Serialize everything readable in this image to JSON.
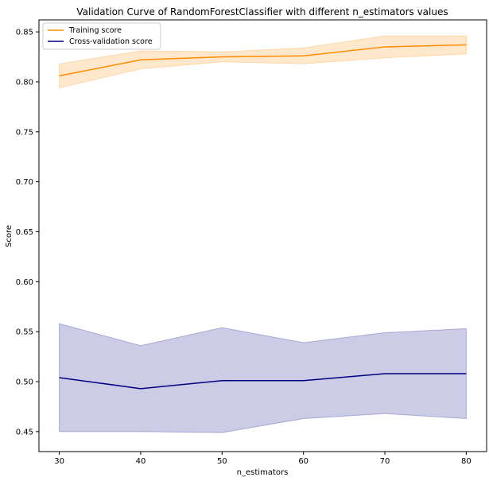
{
  "chart_data": {
    "type": "line",
    "title": "Validation Curve of RandomForestClassifier with different n_estimators values",
    "xlabel": "n_estimators",
    "ylabel": "Score",
    "x": [
      30,
      40,
      50,
      60,
      70,
      80
    ],
    "xlim": [
      27.5,
      82.5
    ],
    "ylim": [
      0.43,
      0.862
    ],
    "xticks": [
      30,
      40,
      50,
      60,
      70,
      80
    ],
    "yticks": [
      0.45,
      0.5,
      0.55,
      0.6,
      0.65,
      0.7,
      0.75,
      0.8,
      0.85
    ],
    "ytick_labels": [
      "0.45",
      "0.50",
      "0.55",
      "0.60",
      "0.65",
      "0.70",
      "0.75",
      "0.80",
      "0.85"
    ],
    "grid": false,
    "legend_position": "top-left",
    "series": [
      {
        "name": "Training score",
        "color": "#ff8c00",
        "values": [
          0.806,
          0.822,
          0.825,
          0.826,
          0.835,
          0.837
        ],
        "upper": [
          0.818,
          0.831,
          0.83,
          0.834,
          0.846,
          0.846
        ],
        "lower": [
          0.794,
          0.813,
          0.82,
          0.818,
          0.824,
          0.828
        ]
      },
      {
        "name": "Cross-validation score",
        "color": "#000080",
        "values": [
          0.504,
          0.493,
          0.501,
          0.501,
          0.508,
          0.508
        ],
        "upper": [
          0.558,
          0.536,
          0.554,
          0.539,
          0.549,
          0.553
        ],
        "lower": [
          0.45,
          0.45,
          0.449,
          0.463,
          0.468,
          0.463
        ]
      }
    ]
  }
}
